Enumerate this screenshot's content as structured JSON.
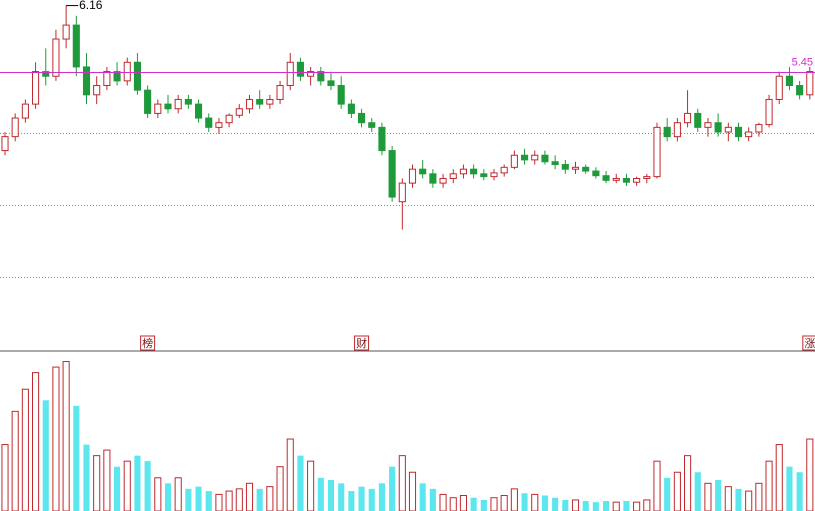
{
  "chart_data": {
    "type": "candlestick",
    "open": [
      4.6,
      4.75,
      4.95,
      5.1,
      5.45,
      5.4,
      5.8,
      5.95,
      5.5,
      5.2,
      5.3,
      5.45,
      5.35,
      5.55,
      5.25,
      5.0,
      5.1,
      5.05,
      5.15,
      5.1,
      4.95,
      4.85,
      4.9,
      4.98,
      5.05,
      5.15,
      5.1,
      5.15,
      5.3,
      5.55,
      5.4,
      5.45,
      5.35,
      5.3,
      5.1,
      5.0,
      4.9,
      4.85,
      4.6,
      4.05,
      4.25,
      4.4,
      4.35,
      4.25,
      4.3,
      4.35,
      4.4,
      4.35,
      4.32,
      4.36,
      4.42,
      4.55,
      4.5,
      4.55,
      4.48,
      4.45,
      4.4,
      4.42,
      4.38,
      4.33,
      4.28,
      4.3,
      4.26,
      4.3,
      4.32,
      4.85,
      4.75,
      4.9,
      5.0,
      4.85,
      4.9,
      4.8,
      4.85,
      4.75,
      4.8,
      4.88,
      5.15,
      5.4,
      5.3,
      5.2
    ],
    "high": [
      4.8,
      5.0,
      5.15,
      5.55,
      5.7,
      5.9,
      6.16,
      6.05,
      5.65,
      5.4,
      5.5,
      5.55,
      5.6,
      5.65,
      5.3,
      5.15,
      5.2,
      5.2,
      5.2,
      5.15,
      5.0,
      4.95,
      5.0,
      5.1,
      5.2,
      5.25,
      5.2,
      5.35,
      5.65,
      5.6,
      5.5,
      5.5,
      5.45,
      5.4,
      5.15,
      5.05,
      4.95,
      4.9,
      4.65,
      4.3,
      4.45,
      4.5,
      4.4,
      4.35,
      4.4,
      4.45,
      4.45,
      4.4,
      4.4,
      4.45,
      4.6,
      4.62,
      4.6,
      4.6,
      4.55,
      4.5,
      4.48,
      4.45,
      4.42,
      4.38,
      4.35,
      4.35,
      4.32,
      4.35,
      4.9,
      4.95,
      4.95,
      5.25,
      5.05,
      4.95,
      5.0,
      4.9,
      4.9,
      4.85,
      4.9,
      5.2,
      5.45,
      5.5,
      5.35,
      5.5
    ],
    "low": [
      4.55,
      4.7,
      4.9,
      5.05,
      5.3,
      5.35,
      5.7,
      5.4,
      5.1,
      5.1,
      5.25,
      5.3,
      5.3,
      5.2,
      4.95,
      4.95,
      5.0,
      5.0,
      5.05,
      4.9,
      4.8,
      4.78,
      4.85,
      4.95,
      5.0,
      5.05,
      5.05,
      5.1,
      5.25,
      5.35,
      5.3,
      5.3,
      5.25,
      5.05,
      4.95,
      4.85,
      4.8,
      4.55,
      4.05,
      3.75,
      4.2,
      4.3,
      4.2,
      4.2,
      4.25,
      4.3,
      4.3,
      4.28,
      4.28,
      4.32,
      4.4,
      4.45,
      4.45,
      4.45,
      4.4,
      4.35,
      4.35,
      4.35,
      4.3,
      4.25,
      4.25,
      4.22,
      4.22,
      4.25,
      4.3,
      4.7,
      4.7,
      4.85,
      4.8,
      4.75,
      4.75,
      4.7,
      4.7,
      4.7,
      4.75,
      4.85,
      5.1,
      5.25,
      5.15,
      5.15
    ],
    "close": [
      4.75,
      4.95,
      5.1,
      5.45,
      5.4,
      5.8,
      5.95,
      5.5,
      5.2,
      5.3,
      5.45,
      5.35,
      5.55,
      5.25,
      5.0,
      5.1,
      5.05,
      5.15,
      5.1,
      4.95,
      4.85,
      4.9,
      4.98,
      5.05,
      5.15,
      5.1,
      5.15,
      5.3,
      5.55,
      5.4,
      5.45,
      5.35,
      5.3,
      5.1,
      5.0,
      4.9,
      4.85,
      4.6,
      4.1,
      4.25,
      4.4,
      4.35,
      4.25,
      4.3,
      4.35,
      4.4,
      4.35,
      4.32,
      4.36,
      4.42,
      4.55,
      4.5,
      4.55,
      4.48,
      4.45,
      4.4,
      4.42,
      4.38,
      4.33,
      4.28,
      4.3,
      4.26,
      4.3,
      4.32,
      4.85,
      4.75,
      4.9,
      5.0,
      4.85,
      4.9,
      4.8,
      4.85,
      4.75,
      4.8,
      4.88,
      5.15,
      5.4,
      5.3,
      5.2,
      5.45
    ],
    "volume": [
      60,
      90,
      110,
      125,
      100,
      130,
      135,
      95,
      60,
      50,
      55,
      40,
      45,
      50,
      45,
      30,
      25,
      30,
      20,
      22,
      18,
      15,
      18,
      20,
      25,
      20,
      22,
      40,
      65,
      50,
      45,
      30,
      28,
      25,
      18,
      22,
      20,
      25,
      40,
      50,
      35,
      25,
      20,
      15,
      12,
      14,
      12,
      10,
      12,
      14,
      20,
      16,
      15,
      14,
      12,
      10,
      10,
      9,
      8,
      9,
      8,
      9,
      8,
      10,
      45,
      30,
      35,
      50,
      35,
      25,
      28,
      22,
      20,
      18,
      25,
      45,
      60,
      40,
      35,
      65
    ],
    "ylim": [
      2.67,
      6.22
    ],
    "yticks": [
      4.79,
      4.01,
      3.24
    ],
    "vlim": [
      0,
      140
    ],
    "events": [
      {
        "index": 14,
        "label": "榜"
      },
      {
        "index": 35,
        "label": "财"
      },
      {
        "index": 79,
        "label": "涨"
      }
    ],
    "colors": {
      "up": "#c0282d",
      "down": "#1f9a3a",
      "volume_down": "#5ce6ee",
      "last_price": "#d02fd0"
    }
  }
}
